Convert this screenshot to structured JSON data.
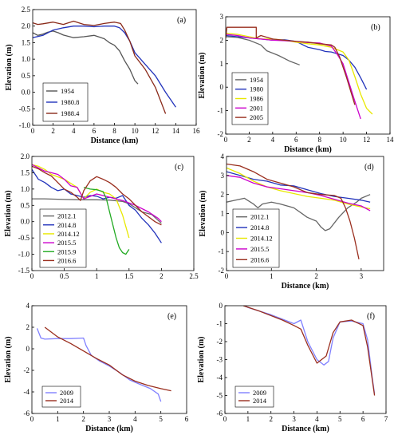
{
  "chart_data": [
    {
      "panel": "(a)",
      "type": "line",
      "xlabel": "Distance (km)",
      "ylabel": "Elevation (m)",
      "xlim": [
        0,
        16
      ],
      "ylim": [
        -1.0,
        2.5
      ],
      "xticks": [
        "0",
        "2",
        "4",
        "6",
        "8",
        "10",
        "12",
        "14",
        "16"
      ],
      "yticks": [
        "-1.0",
        "-0.5",
        "0.0",
        "0.5",
        "1.0",
        "1.5",
        "2.0",
        "2.5"
      ],
      "legend_position": "bottom-left",
      "series": [
        {
          "name": "1954",
          "color": "#555555",
          "x": [
            0,
            0.5,
            1,
            1.5,
            2,
            2.5,
            3,
            4,
            5,
            6,
            7,
            7.5,
            8,
            8.5,
            9,
            9.5,
            10,
            10.3
          ],
          "y": [
            1.8,
            1.72,
            1.76,
            1.82,
            1.85,
            1.8,
            1.73,
            1.65,
            1.68,
            1.72,
            1.62,
            1.5,
            1.42,
            1.25,
            0.95,
            0.7,
            0.35,
            0.25
          ]
        },
        {
          "name": "1980.8",
          "color": "#2233bb",
          "x": [
            0,
            1,
            2,
            3,
            4,
            5,
            6,
            7,
            8,
            8.5,
            9,
            9.5,
            10,
            11,
            12,
            13,
            14
          ],
          "y": [
            1.65,
            1.72,
            1.88,
            1.95,
            2.0,
            2.0,
            1.98,
            2.0,
            2.0,
            1.95,
            1.8,
            1.55,
            1.2,
            0.85,
            0.5,
            0.0,
            -0.45
          ]
        },
        {
          "name": "1988.4",
          "color": "#8a2a1a",
          "x": [
            0,
            0.5,
            1,
            2,
            3,
            4,
            5,
            6,
            7,
            8,
            8.6,
            9,
            9.5,
            10,
            11,
            12,
            12.5,
            13
          ],
          "y": [
            2.1,
            2.05,
            2.07,
            2.12,
            2.05,
            2.15,
            2.05,
            2.02,
            2.08,
            2.12,
            2.08,
            1.88,
            1.55,
            1.1,
            0.7,
            0.15,
            -0.25,
            -0.65
          ]
        }
      ]
    },
    {
      "panel": "(b)",
      "type": "line",
      "xlabel": "Distance (km)",
      "ylabel": "Elevation (m)",
      "xlim": [
        0,
        14
      ],
      "ylim": [
        -2,
        3
      ],
      "xticks": [
        "0",
        "2",
        "4",
        "6",
        "8",
        "10",
        "12",
        "14"
      ],
      "yticks": [
        "-2",
        "-1",
        "0",
        "1",
        "2",
        "3"
      ],
      "legend_position": "bottom-left",
      "series": [
        {
          "name": "1954",
          "color": "#666666",
          "x": [
            0,
            1,
            2,
            3,
            3.5,
            4.5,
            5.5,
            6.3
          ],
          "y": [
            2.15,
            2.12,
            2.0,
            1.8,
            1.55,
            1.35,
            1.1,
            0.95
          ]
        },
        {
          "name": "1980",
          "color": "#2233bb",
          "x": [
            0,
            1,
            2,
            3,
            4,
            5,
            6,
            7,
            8,
            8.5,
            9,
            10,
            10.5,
            11,
            11.5,
            12
          ],
          "y": [
            2.2,
            2.15,
            2.1,
            2.05,
            2.0,
            2.02,
            1.95,
            1.7,
            1.6,
            1.52,
            1.5,
            1.35,
            1.15,
            0.85,
            0.4,
            -0.1
          ]
        },
        {
          "name": "1986",
          "color": "#e8e800",
          "x": [
            0,
            1,
            2,
            3,
            4,
            5,
            6,
            7,
            8,
            9,
            10,
            10.5,
            11,
            11.5,
            12,
            12.5
          ],
          "y": [
            2.3,
            2.25,
            2.15,
            2.05,
            2.05,
            2.0,
            1.92,
            1.85,
            1.8,
            1.7,
            1.5,
            1.15,
            0.45,
            -0.3,
            -0.9,
            -1.15
          ]
        },
        {
          "name": "2001",
          "color": "#cc00cc",
          "x": [
            0,
            1,
            2,
            3,
            4,
            5,
            6,
            7,
            8,
            9,
            9.5,
            10,
            10.5,
            11,
            11.5
          ],
          "y": [
            2.25,
            2.2,
            2.1,
            2.05,
            2.0,
            1.98,
            1.95,
            1.9,
            1.88,
            1.75,
            1.4,
            1.0,
            0.2,
            -0.6,
            -1.35
          ]
        },
        {
          "name": "2005",
          "color": "#9a2e1e",
          "x": [
            0,
            0.1,
            2.6,
            2.6,
            3,
            4,
            5,
            6,
            7,
            8,
            9,
            9.3,
            9.7,
            10.3,
            11
          ],
          "y": [
            2.1,
            2.55,
            2.55,
            2.1,
            2.2,
            2.05,
            2.0,
            1.95,
            1.92,
            1.85,
            1.8,
            1.7,
            1.3,
            0.4,
            -0.75
          ]
        }
      ]
    },
    {
      "panel": "(c)",
      "type": "line",
      "xlabel": "",
      "ylabel": "Elevation (m)",
      "xlim": [
        0,
        2.5
      ],
      "ylim": [
        -1.5,
        2.0
      ],
      "xticks": [
        "0",
        "0.5",
        "1",
        "1.5",
        "2",
        "2.5"
      ],
      "yticks": [
        "-1.5",
        "-1.0",
        "-0.5",
        "0.0",
        "0.5",
        "1.0",
        "1.5",
        "2.0"
      ],
      "legend_position": "bottom-left",
      "series": [
        {
          "name": "2012.1",
          "color": "#666666",
          "x": [
            0,
            0.2,
            0.5,
            0.8,
            1.0,
            1.2,
            1.4,
            1.5,
            1.7,
            1.85,
            2.0
          ],
          "y": [
            0.7,
            0.7,
            0.68,
            0.67,
            0.67,
            0.66,
            0.62,
            0.55,
            0.3,
            0.22,
            -0.05
          ]
        },
        {
          "name": "2014.8",
          "color": "#2233bb",
          "x": [
            0,
            0.1,
            0.2,
            0.3,
            0.4,
            0.5,
            0.6,
            0.7,
            0.8,
            0.9,
            1.0,
            1.1,
            1.2,
            1.3,
            1.4,
            1.5,
            1.6,
            1.7,
            1.8,
            1.9,
            2.0
          ],
          "y": [
            1.6,
            1.3,
            1.2,
            1.05,
            0.95,
            1.0,
            0.85,
            0.8,
            0.75,
            0.8,
            0.78,
            0.7,
            0.75,
            0.72,
            0.8,
            0.5,
            0.35,
            0.1,
            -0.1,
            -0.35,
            -0.65
          ]
        },
        {
          "name": "2014.12",
          "color": "#e8e800",
          "x": [
            0,
            0.1,
            0.2,
            0.3,
            0.5,
            0.7,
            0.8,
            0.9,
            1.0,
            1.1,
            1.2,
            1.3,
            1.4,
            1.5
          ],
          "y": [
            1.75,
            1.7,
            1.6,
            1.45,
            1.3,
            1.05,
            0.7,
            0.9,
            1.0,
            0.9,
            0.85,
            0.7,
            0.2,
            -0.5
          ]
        },
        {
          "name": "2015.5",
          "color": "#cc00cc",
          "x": [
            0,
            0.1,
            0.2,
            0.3,
            0.4,
            0.5,
            0.6,
            0.7,
            0.8,
            1.0,
            1.2,
            1.4,
            1.6,
            1.8,
            1.95,
            2.0
          ],
          "y": [
            1.75,
            1.65,
            1.55,
            1.5,
            1.45,
            1.3,
            1.1,
            1.05,
            0.7,
            0.85,
            0.75,
            0.65,
            0.5,
            0.3,
            0.1,
            0.0
          ]
        },
        {
          "name": "2015.9",
          "color": "#22aa22",
          "x": [
            0.8,
            0.9,
            1.0,
            1.1,
            1.15,
            1.2,
            1.25,
            1.3,
            1.35,
            1.4,
            1.45,
            1.5
          ],
          "y": [
            1.05,
            1.0,
            0.98,
            0.92,
            0.7,
            0.3,
            -0.1,
            -0.5,
            -0.8,
            -0.95,
            -1.0,
            -0.85
          ]
        },
        {
          "name": "2016.6",
          "color": "#9a2e1e",
          "x": [
            0,
            0.1,
            0.2,
            0.3,
            0.4,
            0.5,
            0.6,
            0.7,
            0.75,
            0.8,
            0.9,
            1.0,
            1.1,
            1.2,
            1.3,
            1.4,
            1.5,
            1.6,
            1.7,
            1.8,
            1.9,
            2.0
          ],
          "y": [
            1.7,
            1.62,
            1.5,
            1.4,
            1.2,
            1.0,
            0.9,
            0.75,
            0.65,
            0.95,
            1.25,
            1.38,
            1.3,
            1.2,
            1.05,
            0.85,
            0.7,
            0.5,
            0.3,
            0.15,
            0.0,
            -0.1
          ]
        }
      ]
    },
    {
      "panel": "(d)",
      "type": "line",
      "xlabel": "Distance (km)",
      "ylabel": "Elevation (m)",
      "xlim": [
        0,
        3.5
      ],
      "ylim": [
        -2,
        4
      ],
      "xticks": [
        "0",
        "1",
        "2",
        "3"
      ],
      "yticks": [
        "-2",
        "-1",
        "0",
        "1",
        "2",
        "3",
        "4"
      ],
      "legend_position": "bottom-left",
      "series": [
        {
          "name": "2012.1",
          "color": "#666666",
          "x": [
            0,
            0.2,
            0.4,
            0.6,
            0.7,
            0.8,
            1.0,
            1.2,
            1.5,
            1.8,
            2.0,
            2.1,
            2.2,
            2.3,
            2.5,
            2.7,
            2.9,
            3.0,
            3.2
          ],
          "y": [
            1.6,
            1.7,
            1.8,
            1.5,
            1.3,
            1.5,
            1.6,
            1.5,
            1.3,
            0.8,
            0.6,
            0.3,
            0.1,
            0.2,
            0.8,
            1.3,
            1.6,
            1.8,
            2.0
          ]
        },
        {
          "name": "2014.8",
          "color": "#2233bb",
          "x": [
            0,
            0.3,
            0.6,
            0.9,
            1.2,
            1.5,
            1.8,
            2.1,
            2.4,
            2.7,
            3.0,
            3.2
          ],
          "y": [
            3.2,
            3.0,
            2.8,
            2.7,
            2.5,
            2.45,
            2.25,
            2.05,
            1.9,
            1.8,
            1.7,
            1.6
          ]
        },
        {
          "name": "2014.12",
          "color": "#e8e800",
          "x": [
            0,
            0.3,
            0.6,
            0.9,
            1.2,
            1.5,
            1.8,
            2.1,
            2.4,
            2.7,
            3.0,
            3.2
          ],
          "y": [
            3.4,
            3.1,
            2.7,
            2.4,
            2.2,
            2.05,
            1.9,
            1.8,
            1.7,
            1.5,
            1.35,
            1.25
          ]
        },
        {
          "name": "2015.5",
          "color": "#cc00cc",
          "x": [
            0,
            0.3,
            0.6,
            0.9,
            1.2,
            1.5,
            1.8,
            2.1,
            2.4,
            2.7,
            3.0,
            3.2
          ],
          "y": [
            3.0,
            2.9,
            2.6,
            2.4,
            2.3,
            2.2,
            2.1,
            1.95,
            1.75,
            1.55,
            1.4,
            1.15
          ]
        },
        {
          "name": "2016.6",
          "color": "#9a2e1e",
          "x": [
            0,
            0.3,
            0.6,
            0.9,
            1.2,
            1.5,
            1.8,
            2.1,
            2.4,
            2.55,
            2.65,
            2.75,
            2.85,
            2.95
          ],
          "y": [
            3.6,
            3.5,
            3.2,
            2.8,
            2.6,
            2.4,
            2.1,
            2.0,
            1.95,
            1.8,
            1.3,
            0.6,
            -0.3,
            -1.4
          ]
        }
      ]
    },
    {
      "panel": "(e)",
      "type": "line",
      "xlabel": "Distance (km)",
      "ylabel": "Elevation (m)",
      "xlim": [
        0,
        6
      ],
      "ylim": [
        -6,
        4
      ],
      "xticks": [
        "0",
        "1",
        "2",
        "3",
        "4",
        "5",
        "6"
      ],
      "yticks": [
        "-6",
        "-4",
        "-2",
        "0",
        "2",
        "4"
      ],
      "legend_position": "bottom-left",
      "series": [
        {
          "name": "2009",
          "color": "#8080ff",
          "x": [
            0.2,
            0.35,
            0.5,
            1.0,
            1.5,
            2.0,
            2.1,
            2.3,
            2.6,
            3.0,
            3.4,
            3.8,
            4.2,
            4.6,
            4.9,
            5.0
          ],
          "y": [
            1.9,
            1.0,
            0.9,
            0.95,
            0.95,
            1.0,
            0.3,
            -0.6,
            -1.1,
            -1.6,
            -2.2,
            -2.9,
            -3.3,
            -3.7,
            -4.2,
            -4.9
          ]
        },
        {
          "name": "2014",
          "color": "#9a2e1e",
          "x": [
            0.5,
            1.0,
            1.5,
            2.0,
            2.5,
            3.0,
            3.5,
            4.0,
            4.5,
            5.0,
            5.4
          ],
          "y": [
            2.0,
            1.1,
            0.5,
            -0.2,
            -0.9,
            -1.5,
            -2.4,
            -3.0,
            -3.4,
            -3.7,
            -3.9
          ]
        }
      ]
    },
    {
      "panel": "(f)",
      "type": "line",
      "xlabel": "Distance (km)",
      "ylabel": "Elevation (m)",
      "xlim": [
        0,
        7
      ],
      "ylim": [
        -6,
        0
      ],
      "xticks": [
        "0",
        "1",
        "2",
        "3",
        "4",
        "5",
        "6",
        "7"
      ],
      "yticks": [
        "-6",
        "-5",
        "-4",
        "-3",
        "-2",
        "-1",
        "0"
      ],
      "legend_position": "bottom-left",
      "series": [
        {
          "name": "2009",
          "color": "#8080ff",
          "x": [
            0.75,
            1.0,
            1.5,
            2.0,
            2.5,
            3.0,
            3.3,
            3.6,
            4.0,
            4.3,
            4.5,
            4.7,
            5.0,
            5.5,
            6.0,
            6.2,
            6.4,
            6.5
          ],
          "y": [
            0.1,
            -0.1,
            -0.3,
            -0.5,
            -0.75,
            -1.0,
            -0.8,
            -2.0,
            -3.0,
            -3.3,
            -3.1,
            -1.8,
            -0.9,
            -0.85,
            -1.0,
            -1.9,
            -4.0,
            -4.9
          ]
        },
        {
          "name": "2014",
          "color": "#9a2e1e",
          "x": [
            0.8,
            1.5,
            2.0,
            2.5,
            3.0,
            3.3,
            3.6,
            4.0,
            4.4,
            4.7,
            5.0,
            5.5,
            6.0,
            6.2,
            6.4,
            6.5
          ],
          "y": [
            0.0,
            -0.3,
            -0.55,
            -0.8,
            -1.1,
            -1.3,
            -2.2,
            -3.2,
            -2.8,
            -1.5,
            -0.9,
            -0.8,
            -1.1,
            -2.3,
            -4.1,
            -5.0
          ]
        }
      ]
    }
  ]
}
